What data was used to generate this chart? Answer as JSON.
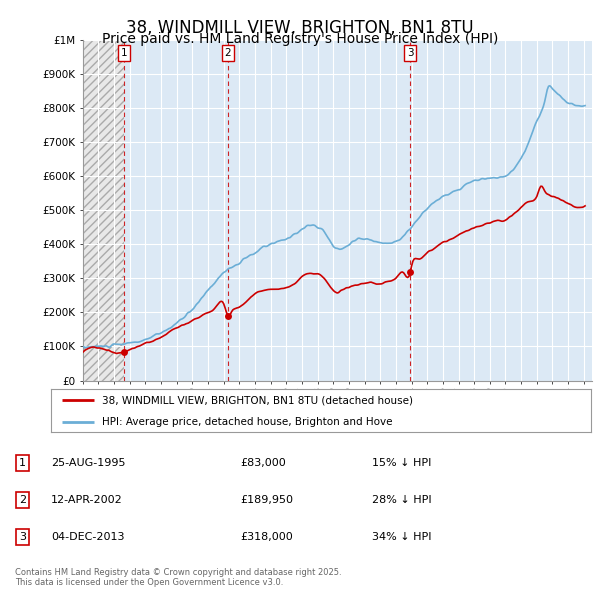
{
  "title": "38, WINDMILL VIEW, BRIGHTON, BN1 8TU",
  "subtitle": "Price paid vs. HM Land Registry's House Price Index (HPI)",
  "title_fontsize": 12,
  "subtitle_fontsize": 10,
  "background_color": "#ffffff",
  "plot_bg_color": "#dce9f5",
  "hatch_color": "#c8c8c8",
  "grid_color": "#ffffff",
  "ylim": [
    0,
    1000000
  ],
  "yticks": [
    0,
    100000,
    200000,
    300000,
    400000,
    500000,
    600000,
    700000,
    800000,
    900000,
    1000000
  ],
  "ytick_labels": [
    "£0",
    "£100K",
    "£200K",
    "£300K",
    "£400K",
    "£500K",
    "£600K",
    "£700K",
    "£800K",
    "£900K",
    "£1M"
  ],
  "xlim_left": 1993.0,
  "xlim_right": 2025.5,
  "sale_dates": [
    1995.646,
    2002.274,
    2013.921
  ],
  "sale_prices": [
    83000,
    189950,
    318000
  ],
  "sale_labels": [
    "1",
    "2",
    "3"
  ],
  "vline_color": "#cc0000",
  "dot_color": "#cc0000",
  "hpi_color": "#6baed6",
  "sold_color": "#cc0000",
  "legend_label_sold": "38, WINDMILL VIEW, BRIGHTON, BN1 8TU (detached house)",
  "legend_label_hpi": "HPI: Average price, detached house, Brighton and Hove",
  "table_rows": [
    {
      "num": "1",
      "date": "25-AUG-1995",
      "price": "£83,000",
      "change": "15% ↓ HPI"
    },
    {
      "num": "2",
      "date": "12-APR-2002",
      "price": "£189,950",
      "change": "28% ↓ HPI"
    },
    {
      "num": "3",
      "date": "04-DEC-2013",
      "price": "£318,000",
      "change": "34% ↓ HPI"
    }
  ],
  "footnote": "Contains HM Land Registry data © Crown copyright and database right 2025.\nThis data is licensed under the Open Government Licence v3.0."
}
